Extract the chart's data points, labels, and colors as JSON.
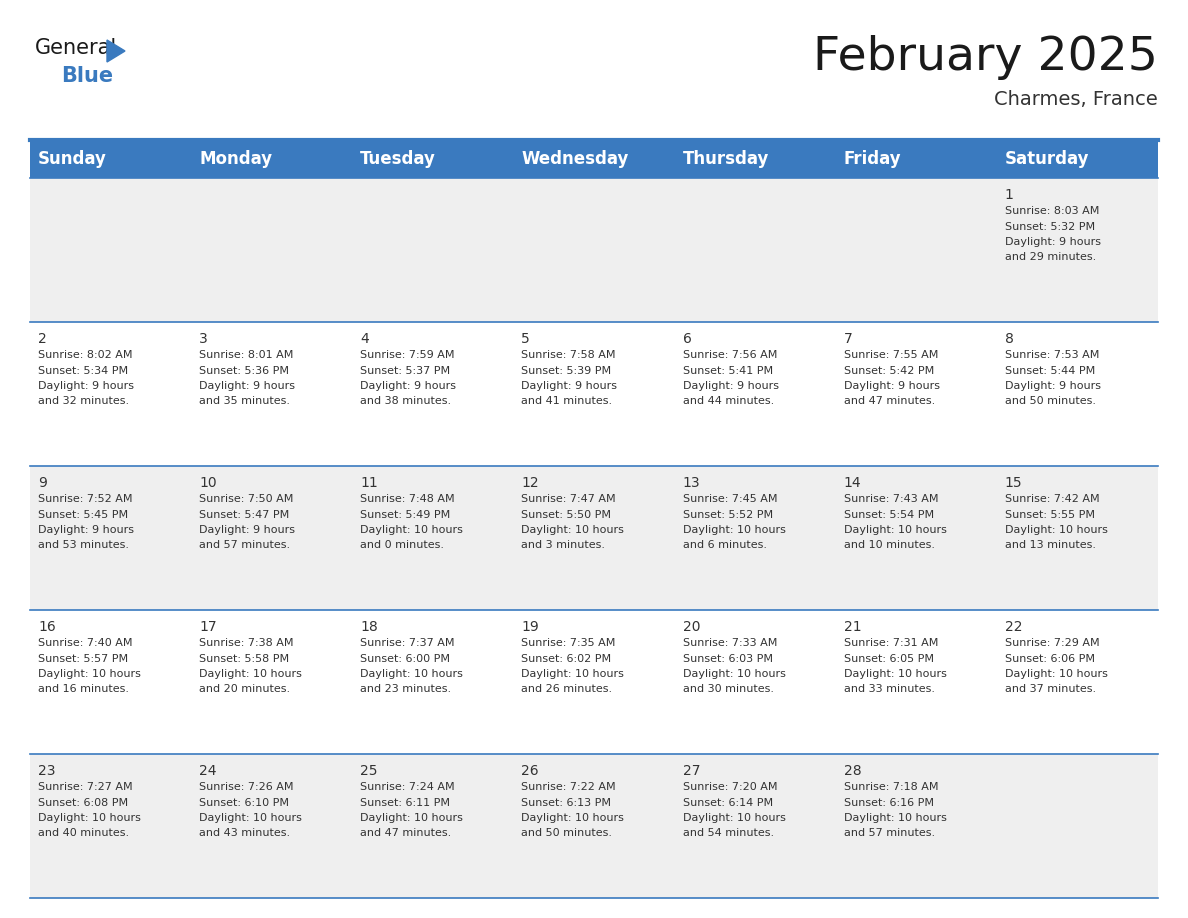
{
  "title": "February 2025",
  "subtitle": "Charmes, France",
  "header_bg": "#3a7abf",
  "header_text_color": "#ffffff",
  "row0_bg": "#efefef",
  "row_odd_bg": "#ffffff",
  "row_even_bg": "#efefef",
  "cell_border_color": "#3a7abf",
  "day_headers": [
    "Sunday",
    "Monday",
    "Tuesday",
    "Wednesday",
    "Thursday",
    "Friday",
    "Saturday"
  ],
  "title_fontsize": 34,
  "subtitle_fontsize": 14,
  "header_fontsize": 12,
  "day_num_fontsize": 10,
  "cell_text_fontsize": 8,
  "days": [
    {
      "day": 1,
      "col": 6,
      "row": 0,
      "sunrise": "8:03 AM",
      "sunset": "5:32 PM",
      "daylight": "9 hours and 29 minutes."
    },
    {
      "day": 2,
      "col": 0,
      "row": 1,
      "sunrise": "8:02 AM",
      "sunset": "5:34 PM",
      "daylight": "9 hours and 32 minutes."
    },
    {
      "day": 3,
      "col": 1,
      "row": 1,
      "sunrise": "8:01 AM",
      "sunset": "5:36 PM",
      "daylight": "9 hours and 35 minutes."
    },
    {
      "day": 4,
      "col": 2,
      "row": 1,
      "sunrise": "7:59 AM",
      "sunset": "5:37 PM",
      "daylight": "9 hours and 38 minutes."
    },
    {
      "day": 5,
      "col": 3,
      "row": 1,
      "sunrise": "7:58 AM",
      "sunset": "5:39 PM",
      "daylight": "9 hours and 41 minutes."
    },
    {
      "day": 6,
      "col": 4,
      "row": 1,
      "sunrise": "7:56 AM",
      "sunset": "5:41 PM",
      "daylight": "9 hours and 44 minutes."
    },
    {
      "day": 7,
      "col": 5,
      "row": 1,
      "sunrise": "7:55 AM",
      "sunset": "5:42 PM",
      "daylight": "9 hours and 47 minutes."
    },
    {
      "day": 8,
      "col": 6,
      "row": 1,
      "sunrise": "7:53 AM",
      "sunset": "5:44 PM",
      "daylight": "9 hours and 50 minutes."
    },
    {
      "day": 9,
      "col": 0,
      "row": 2,
      "sunrise": "7:52 AM",
      "sunset": "5:45 PM",
      "daylight": "9 hours and 53 minutes."
    },
    {
      "day": 10,
      "col": 1,
      "row": 2,
      "sunrise": "7:50 AM",
      "sunset": "5:47 PM",
      "daylight": "9 hours and 57 minutes."
    },
    {
      "day": 11,
      "col": 2,
      "row": 2,
      "sunrise": "7:48 AM",
      "sunset": "5:49 PM",
      "daylight": "10 hours and 0 minutes."
    },
    {
      "day": 12,
      "col": 3,
      "row": 2,
      "sunrise": "7:47 AM",
      "sunset": "5:50 PM",
      "daylight": "10 hours and 3 minutes."
    },
    {
      "day": 13,
      "col": 4,
      "row": 2,
      "sunrise": "7:45 AM",
      "sunset": "5:52 PM",
      "daylight": "10 hours and 6 minutes."
    },
    {
      "day": 14,
      "col": 5,
      "row": 2,
      "sunrise": "7:43 AM",
      "sunset": "5:54 PM",
      "daylight": "10 hours and 10 minutes."
    },
    {
      "day": 15,
      "col": 6,
      "row": 2,
      "sunrise": "7:42 AM",
      "sunset": "5:55 PM",
      "daylight": "10 hours and 13 minutes."
    },
    {
      "day": 16,
      "col": 0,
      "row": 3,
      "sunrise": "7:40 AM",
      "sunset": "5:57 PM",
      "daylight": "10 hours and 16 minutes."
    },
    {
      "day": 17,
      "col": 1,
      "row": 3,
      "sunrise": "7:38 AM",
      "sunset": "5:58 PM",
      "daylight": "10 hours and 20 minutes."
    },
    {
      "day": 18,
      "col": 2,
      "row": 3,
      "sunrise": "7:37 AM",
      "sunset": "6:00 PM",
      "daylight": "10 hours and 23 minutes."
    },
    {
      "day": 19,
      "col": 3,
      "row": 3,
      "sunrise": "7:35 AM",
      "sunset": "6:02 PM",
      "daylight": "10 hours and 26 minutes."
    },
    {
      "day": 20,
      "col": 4,
      "row": 3,
      "sunrise": "7:33 AM",
      "sunset": "6:03 PM",
      "daylight": "10 hours and 30 minutes."
    },
    {
      "day": 21,
      "col": 5,
      "row": 3,
      "sunrise": "7:31 AM",
      "sunset": "6:05 PM",
      "daylight": "10 hours and 33 minutes."
    },
    {
      "day": 22,
      "col": 6,
      "row": 3,
      "sunrise": "7:29 AM",
      "sunset": "6:06 PM",
      "daylight": "10 hours and 37 minutes."
    },
    {
      "day": 23,
      "col": 0,
      "row": 4,
      "sunrise": "7:27 AM",
      "sunset": "6:08 PM",
      "daylight": "10 hours and 40 minutes."
    },
    {
      "day": 24,
      "col": 1,
      "row": 4,
      "sunrise": "7:26 AM",
      "sunset": "6:10 PM",
      "daylight": "10 hours and 43 minutes."
    },
    {
      "day": 25,
      "col": 2,
      "row": 4,
      "sunrise": "7:24 AM",
      "sunset": "6:11 PM",
      "daylight": "10 hours and 47 minutes."
    },
    {
      "day": 26,
      "col": 3,
      "row": 4,
      "sunrise": "7:22 AM",
      "sunset": "6:13 PM",
      "daylight": "10 hours and 50 minutes."
    },
    {
      "day": 27,
      "col": 4,
      "row": 4,
      "sunrise": "7:20 AM",
      "sunset": "6:14 PM",
      "daylight": "10 hours and 54 minutes."
    },
    {
      "day": 28,
      "col": 5,
      "row": 4,
      "sunrise": "7:18 AM",
      "sunset": "6:16 PM",
      "daylight": "10 hours and 57 minutes."
    }
  ]
}
